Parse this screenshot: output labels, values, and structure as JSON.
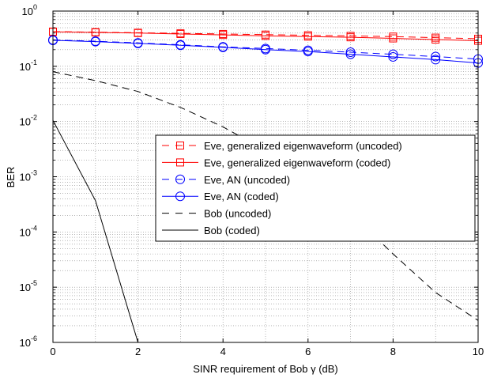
{
  "chart_data": {
    "type": "line",
    "xlabel": "SINR requirement of Bob γ (dB)",
    "ylabel": "BER",
    "xlim": [
      0,
      10
    ],
    "ylim": [
      1e-06,
      1
    ],
    "yscale": "log",
    "grid": true,
    "legend_position": "center-right",
    "x_ticks": [
      "0",
      "2",
      "4",
      "6",
      "8",
      "10"
    ],
    "y_ticks": [
      {
        "base": "10",
        "exp": "-6"
      },
      {
        "base": "10",
        "exp": "-5"
      },
      {
        "base": "10",
        "exp": "-4"
      },
      {
        "base": "10",
        "exp": "-3"
      },
      {
        "base": "10",
        "exp": "-2"
      },
      {
        "base": "10",
        "exp": "-1"
      },
      {
        "base": "10",
        "exp": "0"
      }
    ],
    "series": [
      {
        "name": "Eve, generalized eigenwaveform (uncoded)",
        "color": "#ff0000",
        "dash": "dashed",
        "marker": "square",
        "x": [
          0,
          1,
          2,
          3,
          4,
          5,
          6,
          7,
          8,
          9,
          10
        ],
        "y": [
          0.425,
          0.415,
          0.405,
          0.395,
          0.385,
          0.375,
          0.365,
          0.355,
          0.345,
          0.33,
          0.315
        ]
      },
      {
        "name": "Eve, generalized eigenwaveform (coded)",
        "color": "#ff0000",
        "dash": "solid",
        "marker": "square",
        "x": [
          0,
          1,
          2,
          3,
          4,
          5,
          6,
          7,
          8,
          9,
          10
        ],
        "y": [
          0.42,
          0.41,
          0.4,
          0.385,
          0.37,
          0.355,
          0.345,
          0.335,
          0.32,
          0.305,
          0.29
        ]
      },
      {
        "name": "Eve, AN (uncoded)",
        "color": "#0000ff",
        "dash": "dashed",
        "marker": "circle",
        "x": [
          0,
          1,
          2,
          3,
          4,
          5,
          6,
          7,
          8,
          9,
          10
        ],
        "y": [
          0.3,
          0.285,
          0.265,
          0.245,
          0.225,
          0.21,
          0.195,
          0.18,
          0.165,
          0.15,
          0.135
        ]
      },
      {
        "name": "Eve, AN (coded)",
        "color": "#0000ff",
        "dash": "solid",
        "marker": "circle",
        "x": [
          0,
          1,
          2,
          3,
          4,
          5,
          6,
          7,
          8,
          9,
          10
        ],
        "y": [
          0.295,
          0.28,
          0.26,
          0.24,
          0.22,
          0.2,
          0.185,
          0.165,
          0.148,
          0.132,
          0.115
        ]
      },
      {
        "name": "Bob (uncoded)",
        "color": "#000000",
        "dash": "dashed",
        "marker": "none",
        "x": [
          0,
          1,
          2,
          3,
          4,
          5,
          6,
          7,
          8,
          9,
          10
        ],
        "y": [
          0.08,
          0.055,
          0.035,
          0.018,
          0.008,
          0.003,
          0.0009,
          0.00022,
          4e-05,
          8e-06,
          2.5e-06
        ]
      },
      {
        "name": "Bob (coded)",
        "color": "#000000",
        "dash": "solid",
        "marker": "none",
        "x": [
          0,
          1,
          2
        ],
        "y": [
          0.0105,
          0.00037,
          1e-06
        ]
      }
    ]
  }
}
